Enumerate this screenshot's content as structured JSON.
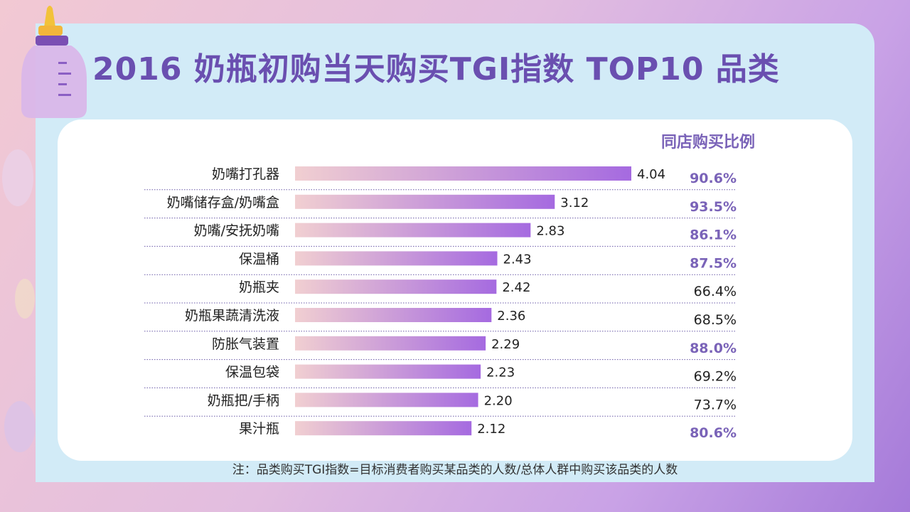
{
  "title": "2016 奶瓶初购当天购买TGI指数 TOP10 品类",
  "column_header": "同店购买比例",
  "footnote": "注：品类购买TGI指数=目标消费者购买某品类的人数/总体人群中购买该品类的人数",
  "colors": {
    "title": "#6a4fb0",
    "bar_start": "#f1cfd1",
    "bar_end": "#a56ae0",
    "highlight_pct": "#7a63b8",
    "normal_pct": "#222222",
    "divider": "#6a5aa8"
  },
  "chart_data": {
    "type": "bar",
    "orientation": "horizontal",
    "categories": [
      "奶嘴打孔器",
      "奶嘴储存盒/奶嘴盒",
      "奶嘴/安抚奶嘴",
      "保温桶",
      "奶瓶夹",
      "奶瓶果蔬清洗液",
      "防胀气装置",
      "保温包袋",
      "奶瓶把/手柄",
      "果汁瓶"
    ],
    "values": [
      4.04,
      3.12,
      2.83,
      2.43,
      2.42,
      2.36,
      2.29,
      2.23,
      2.2,
      2.12
    ],
    "value_labels": [
      "4.04",
      "3.12",
      "2.83",
      "2.43",
      "2.42",
      "2.36",
      "2.29",
      "2.23",
      "2.20",
      "2.12"
    ],
    "same_store_ratio": [
      "90.6%",
      "93.5%",
      "86.1%",
      "87.5%",
      "66.4%",
      "68.5%",
      "88.0%",
      "69.2%",
      "73.7%",
      "80.6%"
    ],
    "ratio_highlighted": [
      true,
      true,
      true,
      true,
      false,
      false,
      true,
      false,
      false,
      true
    ],
    "xlim": [
      0,
      4.04
    ],
    "grid": false,
    "legend": "none"
  }
}
